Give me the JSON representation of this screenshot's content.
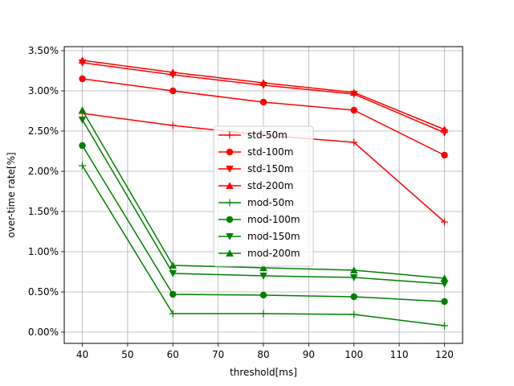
{
  "chart_data": {
    "type": "line",
    "title": "",
    "xlabel": "threshold[ms]",
    "ylabel": "over-time rate[%]",
    "x": [
      40,
      60,
      80,
      100,
      120
    ],
    "xlim": [
      36,
      124
    ],
    "ylim": [
      -0.0014,
      0.0355
    ],
    "xticks": [
      40,
      50,
      60,
      70,
      80,
      90,
      100,
      110,
      120
    ],
    "yticks": [
      0.0,
      0.005,
      0.01,
      0.015,
      0.02,
      0.025,
      0.03,
      0.035
    ],
    "ytick_labels": [
      "0.00%",
      "0.50%",
      "1.00%",
      "1.50%",
      "2.00%",
      "2.50%",
      "3.00%",
      "3.50%"
    ],
    "grid": true,
    "legend_position": "center",
    "series": [
      {
        "name": "std-50m",
        "color": "#ff0000",
        "marker": "plus",
        "values": [
          0.0272,
          0.0257,
          0.0245,
          0.0236,
          0.0137
        ]
      },
      {
        "name": "std-100m",
        "color": "#ff0000",
        "marker": "circle",
        "values": [
          0.0315,
          0.03,
          0.0286,
          0.0276,
          0.022
        ]
      },
      {
        "name": "std-150m",
        "color": "#ff0000",
        "marker": "triangle-down",
        "values": [
          0.0335,
          0.032,
          0.0307,
          0.0296,
          0.0248
        ]
      },
      {
        "name": "std-200m",
        "color": "#ff0000",
        "marker": "triangle-up",
        "values": [
          0.0338,
          0.0323,
          0.031,
          0.0298,
          0.0252
        ]
      },
      {
        "name": "mod-50m",
        "color": "#008000",
        "marker": "plus",
        "values": [
          0.0207,
          0.0023,
          0.0023,
          0.0022,
          0.0008
        ]
      },
      {
        "name": "mod-100m",
        "color": "#008000",
        "marker": "circle",
        "values": [
          0.0232,
          0.0047,
          0.0046,
          0.0044,
          0.0038
        ]
      },
      {
        "name": "mod-150m",
        "color": "#008000",
        "marker": "triangle-down",
        "values": [
          0.0264,
          0.0073,
          0.007,
          0.0068,
          0.006
        ]
      },
      {
        "name": "mod-200m",
        "color": "#008000",
        "marker": "triangle-up",
        "values": [
          0.0276,
          0.0083,
          0.008,
          0.0077,
          0.0067
        ]
      }
    ]
  }
}
